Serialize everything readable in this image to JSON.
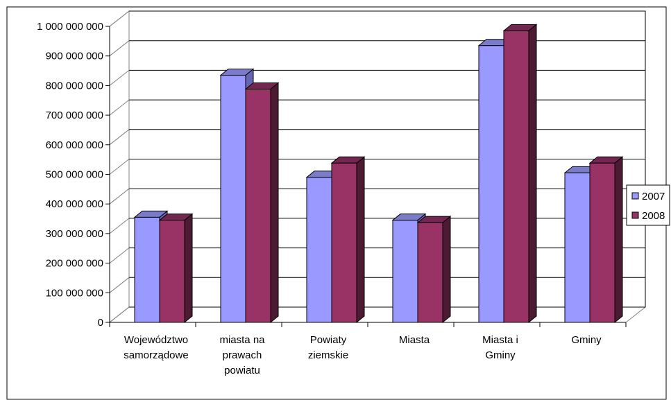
{
  "chart_data": {
    "type": "bar",
    "categories": [
      [
        "Województwo",
        "samorządowe"
      ],
      [
        "miasta na",
        "prawach",
        "powiatu"
      ],
      [
        "Powiaty",
        "ziemskie"
      ],
      [
        "Miasta"
      ],
      [
        "Miasta i",
        "Gminy"
      ],
      [
        "Gminy"
      ]
    ],
    "series": [
      {
        "name": "2007",
        "values": [
          355000000,
          835000000,
          490000000,
          345000000,
          935000000,
          505000000
        ]
      },
      {
        "name": "2008",
        "values": [
          345000000,
          788000000,
          538000000,
          337000000,
          985000000,
          538000000
        ]
      }
    ],
    "ylim": [
      0,
      1000000000
    ],
    "yticks": [
      {
        "value": 0,
        "label": "0"
      },
      {
        "value": 100000000,
        "label": "100 000 000"
      },
      {
        "value": 200000000,
        "label": "200 000 000"
      },
      {
        "value": 300000000,
        "label": "300 000 000"
      },
      {
        "value": 400000000,
        "label": "400 000 000"
      },
      {
        "value": 500000000,
        "label": "500 000 000"
      },
      {
        "value": 600000000,
        "label": "600 000 000"
      },
      {
        "value": 700000000,
        "label": "700 000 000"
      },
      {
        "value": 800000000,
        "label": "800 000 000"
      },
      {
        "value": 900000000,
        "label": "900 000 000"
      },
      {
        "value": 1000000000,
        "label": "1 000 000 000"
      }
    ],
    "grid": true,
    "legend_position": "right",
    "colors": {
      "s0_front": "#9999ff",
      "s0_side": "#6666b3",
      "s0_top": "#7b7bcc",
      "s1_front": "#993366",
      "s1_side": "#4d1a33",
      "s1_top": "#732650"
    }
  }
}
